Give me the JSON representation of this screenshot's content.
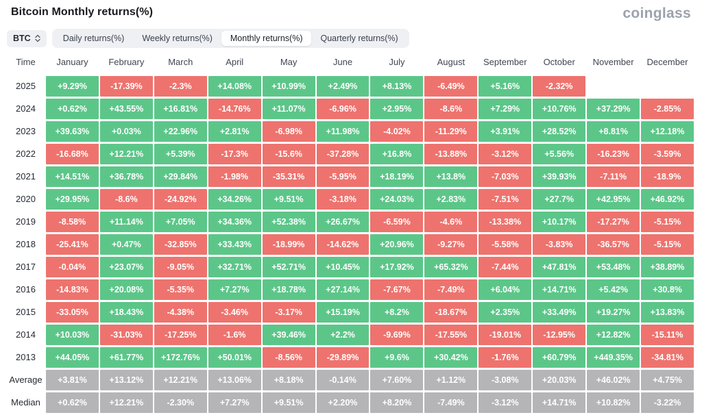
{
  "page": {
    "title": "Bitcoin Monthly returns(%)",
    "logo": "coinglass"
  },
  "controls": {
    "symbol_select": {
      "value": "BTC"
    },
    "tabs": [
      {
        "label": "Daily returns(%)",
        "active": false
      },
      {
        "label": "Weekly returns(%)",
        "active": false
      },
      {
        "label": "Monthly returns(%)",
        "active": true
      },
      {
        "label": "Quarterly returns(%)",
        "active": false
      }
    ]
  },
  "colors": {
    "positive": "#5cc689",
    "negative": "#ee736e",
    "summary": "#b5b5b7",
    "cell_text": "#ffffff"
  },
  "chart_data": {
    "type": "heatmap",
    "title": "Bitcoin Monthly returns(%)",
    "time_label": "Time",
    "columns": [
      "January",
      "February",
      "March",
      "April",
      "May",
      "June",
      "July",
      "August",
      "September",
      "October",
      "November",
      "December"
    ],
    "rows": [
      {
        "label": "2025",
        "type": "year",
        "values": [
          "+9.29%",
          "-17.39%",
          "-2.3%",
          "+14.08%",
          "+10.99%",
          "+2.49%",
          "+8.13%",
          "-6.49%",
          "+5.16%",
          "-2.32%",
          "",
          ""
        ]
      },
      {
        "label": "2024",
        "type": "year",
        "values": [
          "+0.62%",
          "+43.55%",
          "+16.81%",
          "-14.76%",
          "+11.07%",
          "-6.96%",
          "+2.95%",
          "-8.6%",
          "+7.29%",
          "+10.76%",
          "+37.29%",
          "-2.85%"
        ]
      },
      {
        "label": "2023",
        "type": "year",
        "values": [
          "+39.63%",
          "+0.03%",
          "+22.96%",
          "+2.81%",
          "-6.98%",
          "+11.98%",
          "-4.02%",
          "-11.29%",
          "+3.91%",
          "+28.52%",
          "+8.81%",
          "+12.18%"
        ]
      },
      {
        "label": "2022",
        "type": "year",
        "values": [
          "-16.68%",
          "+12.21%",
          "+5.39%",
          "-17.3%",
          "-15.6%",
          "-37.28%",
          "+16.8%",
          "-13.88%",
          "-3.12%",
          "+5.56%",
          "-16.23%",
          "-3.59%"
        ]
      },
      {
        "label": "2021",
        "type": "year",
        "values": [
          "+14.51%",
          "+36.78%",
          "+29.84%",
          "-1.98%",
          "-35.31%",
          "-5.95%",
          "+18.19%",
          "+13.8%",
          "-7.03%",
          "+39.93%",
          "-7.11%",
          "-18.9%"
        ]
      },
      {
        "label": "2020",
        "type": "year",
        "values": [
          "+29.95%",
          "-8.6%",
          "-24.92%",
          "+34.26%",
          "+9.51%",
          "-3.18%",
          "+24.03%",
          "+2.83%",
          "-7.51%",
          "+27.7%",
          "+42.95%",
          "+46.92%"
        ]
      },
      {
        "label": "2019",
        "type": "year",
        "values": [
          "-8.58%",
          "+11.14%",
          "+7.05%",
          "+34.36%",
          "+52.38%",
          "+26.67%",
          "-6.59%",
          "-4.6%",
          "-13.38%",
          "+10.17%",
          "-17.27%",
          "-5.15%"
        ]
      },
      {
        "label": "2018",
        "type": "year",
        "values": [
          "-25.41%",
          "+0.47%",
          "-32.85%",
          "+33.43%",
          "-18.99%",
          "-14.62%",
          "+20.96%",
          "-9.27%",
          "-5.58%",
          "-3.83%",
          "-36.57%",
          "-5.15%"
        ]
      },
      {
        "label": "2017",
        "type": "year",
        "values": [
          "-0.04%",
          "+23.07%",
          "-9.05%",
          "+32.71%",
          "+52.71%",
          "+10.45%",
          "+17.92%",
          "+65.32%",
          "-7.44%",
          "+47.81%",
          "+53.48%",
          "+38.89%"
        ]
      },
      {
        "label": "2016",
        "type": "year",
        "values": [
          "-14.83%",
          "+20.08%",
          "-5.35%",
          "+7.27%",
          "+18.78%",
          "+27.14%",
          "-7.67%",
          "-7.49%",
          "+6.04%",
          "+14.71%",
          "+5.42%",
          "+30.8%"
        ]
      },
      {
        "label": "2015",
        "type": "year",
        "values": [
          "-33.05%",
          "+18.43%",
          "-4.38%",
          "-3.46%",
          "-3.17%",
          "+15.19%",
          "+8.2%",
          "-18.67%",
          "+2.35%",
          "+33.49%",
          "+19.27%",
          "+13.83%"
        ]
      },
      {
        "label": "2014",
        "type": "year",
        "values": [
          "+10.03%",
          "-31.03%",
          "-17.25%",
          "-1.6%",
          "+39.46%",
          "+2.2%",
          "-9.69%",
          "-17.55%",
          "-19.01%",
          "-12.95%",
          "+12.82%",
          "-15.11%"
        ]
      },
      {
        "label": "2013",
        "type": "year",
        "values": [
          "+44.05%",
          "+61.77%",
          "+172.76%",
          "+50.01%",
          "-8.56%",
          "-29.89%",
          "+9.6%",
          "+30.42%",
          "-1.76%",
          "+60.79%",
          "+449.35%",
          "-34.81%"
        ]
      },
      {
        "label": "Average",
        "type": "summary",
        "values": [
          "+3.81%",
          "+13.12%",
          "+12.21%",
          "+13.06%",
          "+8.18%",
          "-0.14%",
          "+7.60%",
          "+1.12%",
          "-3.08%",
          "+20.03%",
          "+46.02%",
          "+4.75%"
        ]
      },
      {
        "label": "Median",
        "type": "summary",
        "values": [
          "+0.62%",
          "+12.21%",
          "-2.30%",
          "+7.27%",
          "+9.51%",
          "+2.20%",
          "+8.20%",
          "-7.49%",
          "-3.12%",
          "+14.71%",
          "+10.82%",
          "-3.22%"
        ]
      }
    ]
  }
}
